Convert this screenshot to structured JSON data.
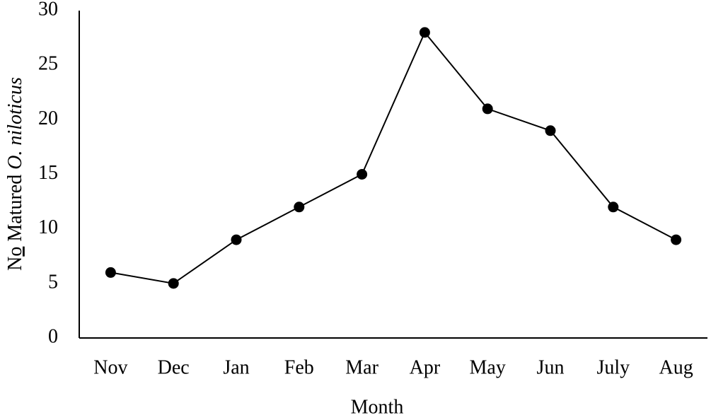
{
  "chart_data": {
    "type": "line",
    "ylabel": [
      "N",
      "o",
      " Matured ",
      "O. niloticus"
    ],
    "xlabel": "Month",
    "categories": [
      "Nov",
      "Dec",
      "Jan",
      "Feb",
      "Mar",
      "Apr",
      "May",
      "Jun",
      "July",
      "Aug"
    ],
    "values": [
      6,
      5,
      9,
      12,
      15,
      28,
      21,
      19,
      12,
      9
    ],
    "color": "#000000",
    "ylim": [
      0,
      30
    ],
    "yticks": [
      0,
      5,
      10,
      15,
      20,
      25,
      30
    ],
    "grid": false
  }
}
